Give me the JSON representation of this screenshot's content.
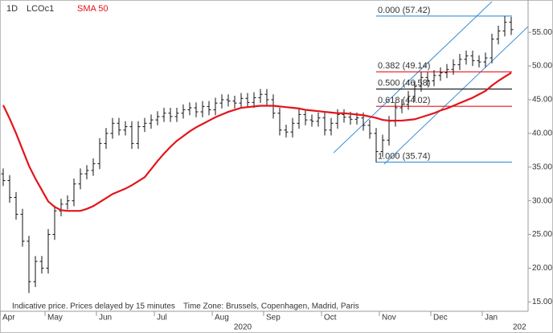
{
  "chart_data": {
    "type": "ohlc",
    "interval": "1D",
    "categories": [
      "Apr",
      null,
      null,
      null,
      null,
      null,
      null,
      "May",
      null,
      null,
      null,
      null,
      null,
      null,
      null,
      "Jun",
      null,
      null,
      null,
      null,
      null,
      null,
      null,
      null,
      "Jul",
      null,
      null,
      null,
      null,
      null,
      null,
      null,
      null,
      "Aug",
      null,
      null,
      null,
      null,
      null,
      null,
      null,
      "Sep",
      null,
      null,
      null,
      null,
      null,
      null,
      null,
      null,
      "Oct",
      null,
      null,
      null,
      null,
      null,
      null,
      null,
      null,
      "Nov",
      null,
      null,
      null,
      null,
      null,
      null,
      null,
      "Dec",
      null,
      null,
      null,
      null,
      null,
      null,
      null,
      "Jan",
      null,
      null,
      null,
      null
    ],
    "series": [
      {
        "name": "LCOc1",
        "type": "ohlc",
        "color": "#111111",
        "open": [
          34,
          33,
          30.5,
          28,
          24,
          18,
          21,
          20,
          25,
          28.5,
          29.5,
          30,
          32.5,
          34,
          34.5,
          35.5,
          38.5,
          40,
          41.5,
          40.5,
          41,
          38.5,
          41,
          41.5,
          42,
          42.5,
          43,
          42.5,
          43,
          43.5,
          43.8,
          43.2,
          44,
          43.5,
          44.5,
          45,
          44.8,
          44.5,
          45.2,
          44.6,
          45.3,
          45.8,
          45,
          43,
          40.5,
          40.2,
          41.5,
          42.8,
          42,
          41.8,
          42.3,
          40.5,
          41.5,
          42.8,
          42.4,
          42.1,
          42.3,
          41.2,
          40,
          37.3,
          39,
          41.8,
          43.8,
          44.3,
          45.5,
          47,
          48.3,
          47.8,
          48.6,
          49,
          49.5,
          50.2,
          51,
          51.5,
          50.8,
          50.6,
          51.2,
          54,
          55.2,
          56.5
        ],
        "high": [
          34.8,
          33.8,
          31.3,
          28.8,
          24.8,
          21.8,
          21.8,
          25.8,
          29.3,
          30.3,
          30.8,
          33.3,
          34.8,
          35.3,
          36.3,
          39.3,
          40.8,
          42.3,
          42.3,
          41.8,
          41.8,
          41.8,
          42.3,
          42.8,
          43.3,
          43.8,
          43.8,
          43.8,
          44.3,
          44.6,
          44.6,
          44.8,
          44.8,
          45.3,
          45.8,
          45.8,
          45.6,
          46,
          46,
          46.1,
          46.6,
          46.6,
          45.8,
          43.8,
          41.3,
          42.3,
          43.6,
          43.6,
          42.8,
          43.1,
          43.1,
          42.3,
          43.6,
          43.6,
          43.2,
          43.1,
          43.1,
          42,
          40.8,
          39.8,
          42.6,
          44.6,
          45.1,
          46.3,
          47.8,
          49.1,
          49.1,
          49.4,
          49.8,
          50.3,
          51,
          51.8,
          52.3,
          52.3,
          51.6,
          52,
          54.8,
          56,
          57.4,
          57.3
        ],
        "low": [
          32.2,
          29.7,
          27.2,
          23.2,
          16.3,
          17.2,
          19.2,
          19.2,
          24.2,
          27.7,
          28.7,
          29.2,
          31.7,
          33.2,
          33.7,
          34.7,
          37.7,
          39.2,
          39.7,
          39.7,
          37.7,
          37.7,
          40.2,
          40.7,
          41.2,
          41.7,
          41.7,
          41.7,
          42.2,
          42.7,
          42.4,
          42.4,
          42.7,
          42.7,
          43.7,
          44,
          43.7,
          43.7,
          43.8,
          43.8,
          44.5,
          44.2,
          42.2,
          39.7,
          39.4,
          39.4,
          40.7,
          41.2,
          41,
          41,
          39.7,
          39.7,
          40.7,
          41.6,
          41.3,
          41.3,
          40.4,
          39.2,
          35.7,
          36.5,
          38.2,
          41,
          43,
          43.5,
          44.7,
          46.2,
          47,
          47,
          47.8,
          48.2,
          48.7,
          49.4,
          50.2,
          50,
          49.8,
          49.8,
          50.4,
          53.2,
          54.4,
          54.6
        ],
        "close": [
          33,
          30.5,
          28,
          24,
          18,
          21,
          20,
          25,
          28.5,
          29.5,
          30,
          32.5,
          34,
          34.5,
          35.5,
          38.5,
          40,
          41.5,
          40.5,
          41,
          38.5,
          41,
          41.5,
          42,
          42.5,
          43,
          42.5,
          43,
          43.5,
          43.8,
          43.2,
          44,
          43.5,
          44.5,
          45,
          44.8,
          44.5,
          45.2,
          44.6,
          45.3,
          45.8,
          45,
          43,
          40.5,
          40.2,
          41.5,
          42.8,
          42,
          41.8,
          42.3,
          40.5,
          41.5,
          42.8,
          42.4,
          42.1,
          42.3,
          41.2,
          40,
          37.3,
          39,
          41.8,
          43.8,
          44.3,
          45.5,
          47,
          48.3,
          47.8,
          48.6,
          49,
          49.5,
          50.2,
          51,
          51.5,
          50.8,
          50.6,
          51.2,
          54,
          55.2,
          56.5,
          55.4
        ]
      },
      {
        "name": "SMA 50",
        "type": "line",
        "color": "#e3141b",
        "values": [
          44.2,
          42.2,
          40.0,
          37.6,
          35.2,
          33.3,
          31.6,
          29.9,
          29.1,
          28.6,
          28.5,
          28.5,
          28.5,
          28.8,
          29.2,
          29.8,
          30.4,
          31.0,
          31.4,
          31.8,
          32.3,
          32.9,
          33.5,
          34.7,
          35.9,
          37.0,
          38.0,
          38.9,
          39.6,
          40.3,
          40.9,
          41.4,
          41.9,
          42.4,
          42.8,
          43.2,
          43.5,
          43.8,
          43.9,
          44.0,
          44.1,
          44.1,
          44.1,
          44.0,
          43.9,
          43.8,
          43.7,
          43.5,
          43.4,
          43.3,
          43.2,
          43.1,
          43.0,
          43.0,
          42.9,
          42.8,
          42.7,
          42.5,
          42.3,
          42.0,
          41.9,
          41.9,
          41.9,
          42.0,
          42.1,
          42.4,
          42.7,
          43.0,
          43.4,
          43.7,
          44.1,
          44.5,
          44.9,
          45.3,
          45.8,
          46.3,
          47.1,
          47.8,
          48.4,
          49.0
        ]
      }
    ],
    "ylim": [
      13.6,
      59.8
    ],
    "yticks": [
      {
        "value": 15,
        "label": "15.00"
      },
      {
        "value": 20,
        "label": "20.00"
      },
      {
        "value": 25,
        "label": "25.00"
      },
      {
        "value": 30,
        "label": "30.00"
      },
      {
        "value": 35,
        "label": "35.00"
      },
      {
        "value": 40,
        "label": "40.00"
      },
      {
        "value": 45,
        "label": "45.00"
      },
      {
        "value": 50,
        "label": "50.00"
      },
      {
        "value": 55,
        "label": "55.00"
      }
    ],
    "year_labels": [
      "2020",
      "202"
    ],
    "fib_levels": [
      {
        "label": "0.000 (57.42)",
        "value": 57.42,
        "color": "#3a8fd6"
      },
      {
        "label": "0.382 (49.14)",
        "value": 49.14,
        "color": "#e3141b"
      },
      {
        "label": "0.500 (46.58)",
        "value": 46.58,
        "color": "#222222"
      },
      {
        "label": "0.618 (44.02)",
        "value": 44.02,
        "color": "#e3141b"
      },
      {
        "label": "1.000 (35.74)",
        "value": 35.74,
        "color": "#3a8fd6"
      }
    ],
    "footnotes": [
      "Indicative price. Prices delayed by 15 minutes",
      "Time Zone: Brussels, Copenhagen, Madrid, Paris"
    ],
    "grid": false
  }
}
